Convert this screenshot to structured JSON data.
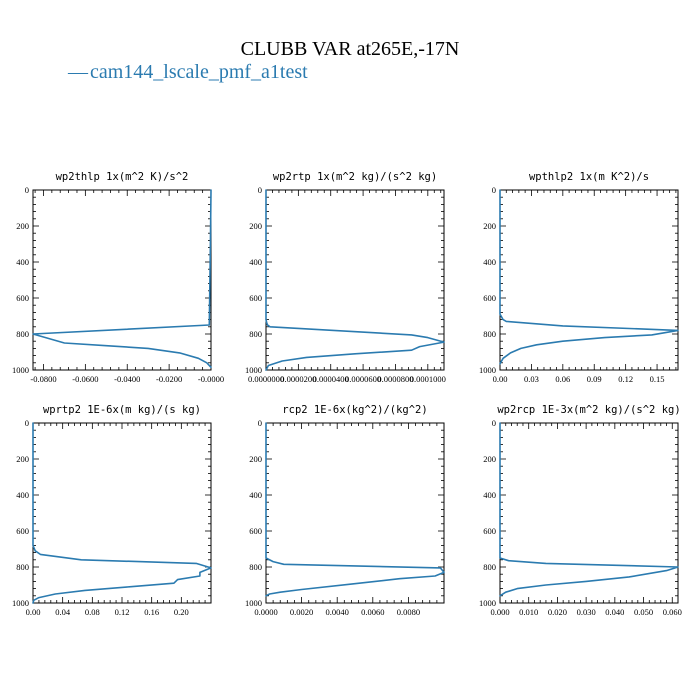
{
  "title": "CLUBB VAR at265E,-17N",
  "legend": {
    "label": "cam144_lscale_pmf_a1test",
    "marker": "—",
    "color": "#2b7bb0"
  },
  "chart_data": [
    {
      "type": "line",
      "title": "wp2thlp  1x(m^2 K)/s^2",
      "xlim": [
        -0.085,
        0.0
      ],
      "ylim": [
        0,
        1000
      ],
      "y_inverted": true,
      "xticks": [
        -0.08,
        -0.06,
        -0.04,
        -0.02,
        0.0
      ],
      "xtick_labels": [
        "-0.0800",
        "-0.0600",
        "-0.0400",
        "-0.0200",
        "-0.0000"
      ],
      "yticks": [
        0,
        200,
        400,
        600,
        800,
        1000
      ],
      "ytick_labels": [
        "0",
        "200",
        "400",
        "600",
        "800",
        "1000"
      ],
      "series": [
        {
          "color": "#2b7bb0",
          "x": [
            0.0,
            -0.0003,
            -0.0008,
            -0.085,
            -0.07,
            -0.05,
            -0.03,
            -0.015,
            -0.006,
            -0.002,
            0.0
          ],
          "y": [
            0,
            300,
            750,
            800,
            850,
            865,
            880,
            905,
            935,
            960,
            985
          ]
        }
      ]
    },
    {
      "type": "line",
      "title": "wp2rtp  1x(m^2 kg)/(s^2 kg)",
      "xlim": [
        0.0,
        0.00011
      ],
      "ylim": [
        0,
        1000
      ],
      "y_inverted": true,
      "xticks": [
        0.0,
        2e-05,
        4e-05,
        6e-05,
        8e-05,
        0.0001
      ],
      "xtick_labels": [
        "0.0000000",
        "0.0000200",
        "0.0000400",
        "0.0000600",
        "0.0000800",
        "0.0001000"
      ],
      "yticks": [
        0,
        200,
        400,
        600,
        800,
        1000
      ],
      "ytick_labels": [
        "0",
        "200",
        "400",
        "600",
        "800",
        "1000"
      ],
      "series": [
        {
          "color": "#2b7bb0",
          "x": [
            0.0,
            0.0,
            5e-07,
            1e-06,
            2.5e-06,
            9e-05,
            0.0001,
            0.00011,
            9.5e-05,
            9e-05,
            5.5e-05,
            2.5e-05,
            1e-05,
            1.5e-06,
            0.0
          ],
          "y": [
            0,
            720,
            740,
            750,
            760,
            805,
            820,
            845,
            870,
            890,
            910,
            930,
            950,
            975,
            1000
          ]
        }
      ]
    },
    {
      "type": "line",
      "title": "wpthlp2  1x(m K^2)/s",
      "xlim": [
        0.0,
        0.17
      ],
      "ylim": [
        0,
        1000
      ],
      "y_inverted": true,
      "xticks": [
        0.0,
        0.03,
        0.06,
        0.09,
        0.12,
        0.15
      ],
      "xtick_labels": [
        "0.00",
        "0.03",
        "0.06",
        "0.09",
        "0.12",
        "0.15"
      ],
      "yticks": [
        0,
        200,
        400,
        600,
        800,
        1000
      ],
      "ytick_labels": [
        "0",
        "200",
        "400",
        "600",
        "800",
        "1000"
      ],
      "series": [
        {
          "color": "#2b7bb0",
          "x": [
            0.0,
            0.0,
            0.003,
            0.006,
            0.06,
            0.17,
            0.145,
            0.1,
            0.06,
            0.035,
            0.02,
            0.01,
            0.003,
            0.0
          ],
          "y": [
            0,
            690,
            720,
            730,
            755,
            780,
            805,
            820,
            840,
            860,
            880,
            905,
            935,
            965
          ]
        }
      ]
    },
    {
      "type": "line",
      "title": "wprtp2  1E-6x(m kg)/(s kg)",
      "xlim": [
        0.0,
        0.24
      ],
      "ylim": [
        0,
        1000
      ],
      "y_inverted": true,
      "xticks": [
        0.0,
        0.04,
        0.08,
        0.12,
        0.16,
        0.2
      ],
      "xtick_labels": [
        "0.00",
        "0.04",
        "0.08",
        "0.12",
        "0.16",
        "0.20"
      ],
      "yticks": [
        0,
        200,
        400,
        600,
        800,
        1000
      ],
      "ytick_labels": [
        "0",
        "200",
        "400",
        "600",
        "800",
        "1000"
      ],
      "series": [
        {
          "color": "#2b7bb0",
          "x": [
            0.0,
            0.0,
            0.003,
            0.01,
            0.065,
            0.22,
            0.24,
            0.225,
            0.225,
            0.195,
            0.19,
            0.13,
            0.07,
            0.03,
            0.008,
            0.001,
            0.0
          ],
          "y": [
            0,
            680,
            710,
            730,
            760,
            780,
            805,
            830,
            850,
            870,
            890,
            910,
            930,
            950,
            970,
            985,
            1000
          ]
        }
      ]
    },
    {
      "type": "line",
      "title": "rcp2  1E-6x(kg^2)/(kg^2)",
      "xlim": [
        0.0,
        0.01
      ],
      "ylim": [
        0,
        1000
      ],
      "y_inverted": true,
      "xticks": [
        0.0,
        0.002,
        0.004,
        0.006,
        0.008
      ],
      "xtick_labels": [
        "0.0000",
        "0.0020",
        "0.0040",
        "0.0060",
        "0.0080"
      ],
      "yticks": [
        0,
        200,
        400,
        600,
        800,
        1000
      ],
      "ytick_labels": [
        "0",
        "200",
        "400",
        "600",
        "800",
        "1000"
      ],
      "series": [
        {
          "color": "#2b7bb0",
          "x": [
            0.0,
            0.0,
            0.0004,
            0.001,
            0.0098,
            0.01,
            0.0095,
            0.0075,
            0.0048,
            0.002,
            0.0008,
            0.0002,
            0.0
          ],
          "y": [
            0,
            750,
            770,
            785,
            805,
            830,
            850,
            865,
            895,
            925,
            940,
            950,
            960
          ]
        }
      ]
    },
    {
      "type": "line",
      "title": "wp2rcp  1E-3x(m^2 kg)/(s^2 kg)",
      "xlim": [
        0.0,
        0.062
      ],
      "ylim": [
        0,
        1000
      ],
      "y_inverted": true,
      "xticks": [
        0.0,
        0.01,
        0.02,
        0.03,
        0.04,
        0.05,
        0.06
      ],
      "xtick_labels": [
        "0.000",
        "0.010",
        "0.020",
        "0.030",
        "0.040",
        "0.050",
        "0.060"
      ],
      "yticks": [
        0,
        200,
        400,
        600,
        800,
        1000
      ],
      "ytick_labels": [
        "0",
        "200",
        "400",
        "600",
        "800",
        "1000"
      ],
      "series": [
        {
          "color": "#2b7bb0",
          "x": [
            0.0,
            0.0,
            0.003,
            0.016,
            0.062,
            0.058,
            0.045,
            0.03,
            0.016,
            0.006,
            0.002,
            0.0
          ],
          "y": [
            0,
            750,
            765,
            780,
            800,
            820,
            855,
            880,
            900,
            920,
            940,
            960
          ]
        }
      ]
    }
  ]
}
